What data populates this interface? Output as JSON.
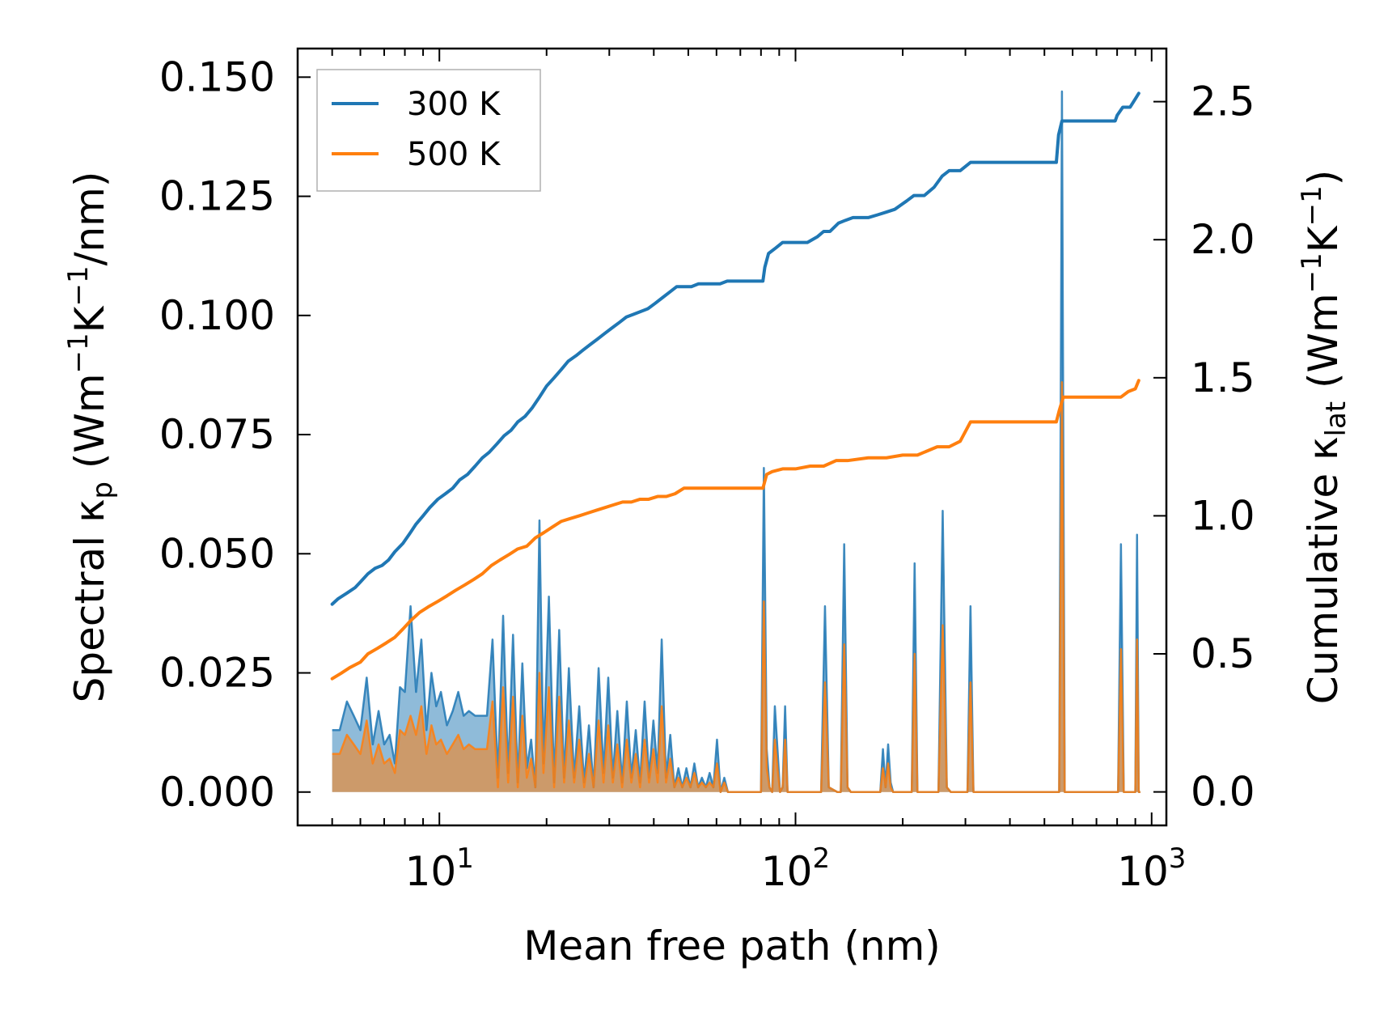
{
  "chart_data": {
    "type": "line",
    "x_scale": "log",
    "xlim": [
      4.0,
      1100.0
    ],
    "ylim_left": [
      -0.007,
      0.156
    ],
    "ylim_right": [
      -0.1213,
      2.6923
    ],
    "xlabel": "Mean free path (nm)",
    "ylabel_left": {
      "main": "Spectral κ",
      "sub": "p",
      "open": " (Wm",
      "sup1": "−1",
      "mid": "K",
      "sup2": "−1",
      "close": "/nm)"
    },
    "ylabel_right": {
      "main": "Cumulative κ",
      "sub": "lat",
      "open": " (Wm",
      "sup1": "−1",
      "mid": "K",
      "sup2": "−1",
      "close": ")"
    },
    "x_ticks": [
      {
        "value": 10,
        "base": "10",
        "exp": "1"
      },
      {
        "value": 100,
        "base": "10",
        "exp": "2"
      },
      {
        "value": 1000,
        "base": "10",
        "exp": "3"
      }
    ],
    "y_ticks_left": [
      "0.000",
      "0.025",
      "0.050",
      "0.075",
      "0.100",
      "0.125",
      "0.150"
    ],
    "y_ticks_right": [
      "0.0",
      "0.5",
      "1.0",
      "1.5",
      "2.0",
      "2.5"
    ],
    "legend": {
      "position": "top-left",
      "entries": [
        "300 K",
        "500 K"
      ]
    },
    "colors": {
      "s300": "#1f77b4",
      "s500": "#ff7f0e",
      "fill300": "#1f77b4",
      "fill500": "#ff7f0e"
    },
    "series": [
      {
        "name": "300 K",
        "axis": "right",
        "role": "cumulative",
        "x": [
          5.0,
          5.2,
          5.5,
          5.8,
          6.0,
          6.3,
          6.6,
          6.9,
          7.2,
          7.5,
          7.9,
          8.3,
          8.6,
          9.0,
          9.4,
          9.9,
          10.4,
          10.9,
          11.4,
          12.0,
          12.6,
          13.2,
          13.8,
          14.5,
          15.2,
          15.9,
          16.6,
          17.4,
          18.2,
          19.1,
          20.0,
          21.0,
          22.0,
          23.0,
          24.2,
          25.3,
          26.5,
          27.8,
          29.1,
          30.5,
          32.0,
          33.5,
          35.1,
          36.8,
          38.5,
          40.4,
          42.3,
          44.3,
          46.4,
          48.6,
          51.0,
          53.4,
          56.0,
          58.6,
          61.4,
          64.3,
          67.4,
          70.6,
          74.0,
          77.5,
          81.0,
          82.0,
          84.0,
          88.0,
          92.0,
          97.0,
          102.0,
          108.0,
          115.0,
          120.0,
          125.0,
          132.0,
          138.0,
          145.0,
          160.0,
          170.0,
          180.0,
          190.0,
          205.0,
          215.0,
          230.0,
          245.0,
          258.0,
          270.0,
          290.0,
          310.0,
          330.0,
          360.0,
          400.0,
          460.0,
          540.0,
          548.0,
          560.0,
          580.0,
          620.0,
          700.0,
          790.0,
          800.0,
          830.0,
          870.0,
          900.0,
          920.0
        ],
        "y": [
          0.68,
          0.7,
          0.72,
          0.74,
          0.76,
          0.79,
          0.81,
          0.82,
          0.84,
          0.87,
          0.9,
          0.94,
          0.97,
          1.0,
          1.03,
          1.06,
          1.08,
          1.1,
          1.13,
          1.15,
          1.18,
          1.21,
          1.23,
          1.26,
          1.29,
          1.31,
          1.34,
          1.36,
          1.39,
          1.43,
          1.47,
          1.5,
          1.53,
          1.56,
          1.58,
          1.6,
          1.62,
          1.64,
          1.66,
          1.68,
          1.7,
          1.72,
          1.73,
          1.74,
          1.75,
          1.77,
          1.79,
          1.81,
          1.83,
          1.83,
          1.83,
          1.84,
          1.84,
          1.84,
          1.84,
          1.85,
          1.85,
          1.85,
          1.85,
          1.85,
          1.85,
          1.9,
          1.95,
          1.97,
          1.99,
          1.99,
          1.99,
          1.99,
          2.01,
          2.03,
          2.03,
          2.06,
          2.07,
          2.08,
          2.08,
          2.09,
          2.1,
          2.11,
          2.14,
          2.16,
          2.16,
          2.19,
          2.23,
          2.25,
          2.25,
          2.28,
          2.28,
          2.28,
          2.28,
          2.28,
          2.28,
          2.38,
          2.43,
          2.43,
          2.43,
          2.43,
          2.43,
          2.45,
          2.48,
          2.48,
          2.51,
          2.53
        ]
      },
      {
        "name": "500 K",
        "axis": "right",
        "role": "cumulative",
        "x": [
          5.0,
          5.3,
          5.6,
          6.0,
          6.3,
          6.7,
          7.1,
          7.5,
          7.9,
          8.3,
          8.8,
          9.3,
          9.9,
          10.5,
          11.1,
          11.8,
          12.5,
          13.2,
          14.0,
          14.8,
          15.7,
          16.6,
          17.6,
          18.6,
          19.7,
          20.8,
          22.0,
          23.3,
          24.7,
          26.1,
          27.6,
          29.2,
          30.9,
          32.7,
          34.6,
          36.6,
          38.7,
          41.0,
          43.4,
          45.9,
          48.6,
          51.4,
          54.4,
          57.6,
          61.0,
          64.6,
          68.4,
          72.4,
          76.7,
          81.0,
          83.0,
          86.0,
          92.0,
          100.0,
          110.0,
          120.0,
          130.0,
          140.0,
          160.0,
          180.0,
          200.0,
          220.0,
          250.0,
          270.0,
          290.0,
          310.0,
          340.0,
          380.0,
          420.0,
          480.0,
          540.0,
          550.0,
          565.0,
          600.0,
          700.0,
          800.0,
          820.0,
          860.0,
          900.0,
          920.0
        ],
        "y": [
          0.41,
          0.43,
          0.45,
          0.47,
          0.5,
          0.52,
          0.54,
          0.56,
          0.59,
          0.62,
          0.65,
          0.67,
          0.69,
          0.71,
          0.73,
          0.75,
          0.77,
          0.79,
          0.82,
          0.84,
          0.86,
          0.88,
          0.89,
          0.92,
          0.94,
          0.96,
          0.98,
          0.99,
          1.0,
          1.01,
          1.02,
          1.03,
          1.04,
          1.05,
          1.05,
          1.06,
          1.06,
          1.07,
          1.07,
          1.08,
          1.1,
          1.1,
          1.1,
          1.1,
          1.1,
          1.1,
          1.1,
          1.1,
          1.1,
          1.1,
          1.15,
          1.16,
          1.17,
          1.17,
          1.18,
          1.18,
          1.2,
          1.2,
          1.21,
          1.21,
          1.22,
          1.22,
          1.25,
          1.25,
          1.27,
          1.34,
          1.34,
          1.34,
          1.34,
          1.34,
          1.34,
          1.38,
          1.43,
          1.43,
          1.43,
          1.43,
          1.43,
          1.45,
          1.46,
          1.49
        ]
      },
      {
        "name": "300 K",
        "axis": "left",
        "role": "spectral",
        "x": [
          5.0,
          5.25,
          5.5,
          5.75,
          6.0,
          6.25,
          6.5,
          6.75,
          7.0,
          7.25,
          7.5,
          7.75,
          8.0,
          8.3,
          8.6,
          8.9,
          9.2,
          9.5,
          9.8,
          10.1,
          10.5,
          10.9,
          11.3,
          11.7,
          12.1,
          12.6,
          13.1,
          13.6,
          14.1,
          14.6,
          15.1,
          15.6,
          16.1,
          16.6,
          17.1,
          17.6,
          18.1,
          18.6,
          19.1,
          19.6,
          20.3,
          21.0,
          21.7,
          22.4,
          23.1,
          23.9,
          24.7,
          25.5,
          26.3,
          27.1,
          28.0,
          28.9,
          29.8,
          30.7,
          31.6,
          32.6,
          33.6,
          34.6,
          35.6,
          36.6,
          37.7,
          38.8,
          39.9,
          41.0,
          42.1,
          43.3,
          44.5,
          45.7,
          46.9,
          48.1,
          49.4,
          50.7,
          52.0,
          53.3,
          54.6,
          56.0,
          57.4,
          58.8,
          60.2,
          61.6,
          63.1,
          64.6,
          66.1,
          67.6,
          69.2,
          70.0,
          80.0,
          81.5,
          83.0,
          84.5,
          86.0,
          87.5,
          89.0,
          90.5,
          92.0,
          93.5,
          95.0,
          96.5,
          98.0,
          115.0,
          118.0,
          121.0,
          124.0,
          131.0,
          134.0,
          137.0,
          140.0,
          143.0,
          170.0,
          173.0,
          176.0,
          179.0,
          182.0,
          185.0,
          188.0,
          191.0,
          194.0,
          208.0,
          212.0,
          216.0,
          220.0,
          245.0,
          252.0,
          259.0,
          266.0,
          273.0,
          280.0,
          298.0,
          304.0,
          310.0,
          316.0,
          322.0,
          540.0,
          550.0,
          560.0,
          570.0,
          580.0,
          790.0,
          805.0,
          820.0,
          835.0,
          850.0,
          890.0,
          900.0,
          910.0,
          920.0,
          930.0
        ],
        "y": [
          0.013,
          0.013,
          0.019,
          0.016,
          0.013,
          0.024,
          0.01,
          0.017,
          0.01,
          0.012,
          0.006,
          0.022,
          0.021,
          0.039,
          0.021,
          0.032,
          0.013,
          0.025,
          0.018,
          0.021,
          0.014,
          0.017,
          0.021,
          0.016,
          0.017,
          0.016,
          0.016,
          0.016,
          0.032,
          0.003,
          0.037,
          0.004,
          0.033,
          0.002,
          0.027,
          0.005,
          0.011,
          0.001,
          0.057,
          0.006,
          0.041,
          0.002,
          0.034,
          0.003,
          0.026,
          0.003,
          0.018,
          0.002,
          0.014,
          0.001,
          0.026,
          0.004,
          0.024,
          0.003,
          0.017,
          0.002,
          0.019,
          0.003,
          0.013,
          0.002,
          0.019,
          0.003,
          0.015,
          0.004,
          0.032,
          0.003,
          0.012,
          0.001,
          0.005,
          0.001,
          0.005,
          0.001,
          0.006,
          0.001,
          0.003,
          0.001,
          0.004,
          0.001,
          0.011,
          0.0,
          0.003,
          0.0,
          0.0,
          0.0,
          0.0,
          0.0,
          0.0,
          0.068,
          0.009,
          0.001,
          0.0,
          0.018,
          0.009,
          0.0,
          0.001,
          0.018,
          0.0,
          0.0,
          0.0,
          0.0,
          0.0,
          0.039,
          0.001,
          0.0,
          0.0,
          0.052,
          0.001,
          0.0,
          0.0,
          0.0,
          0.009,
          0.001,
          0.01,
          0.002,
          0.0,
          0.0,
          0.0,
          0.0,
          0.0,
          0.048,
          0.0,
          0.0,
          0.0,
          0.059,
          0.001,
          0.0,
          0.0,
          0.0,
          0.0,
          0.039,
          0.0,
          0.0,
          0.0,
          0.0,
          0.147,
          0.0,
          0.0,
          0.0,
          0.0,
          0.052,
          0.0,
          0.0,
          0.0,
          0.0,
          0.054,
          0.0,
          0.0
        ]
      },
      {
        "name": "500 K",
        "axis": "left",
        "role": "spectral",
        "x": [
          5.0,
          5.25,
          5.5,
          5.75,
          6.0,
          6.25,
          6.5,
          6.75,
          7.0,
          7.25,
          7.5,
          7.75,
          8.0,
          8.3,
          8.6,
          8.9,
          9.2,
          9.5,
          9.8,
          10.1,
          10.5,
          10.9,
          11.3,
          11.7,
          12.1,
          12.6,
          13.1,
          13.6,
          14.1,
          14.6,
          15.1,
          15.6,
          16.1,
          16.6,
          17.1,
          17.6,
          18.1,
          18.6,
          19.1,
          19.6,
          20.3,
          21.0,
          21.7,
          22.4,
          23.1,
          23.9,
          24.7,
          25.5,
          26.3,
          27.1,
          28.0,
          28.9,
          29.8,
          30.7,
          31.6,
          32.6,
          33.6,
          34.6,
          35.6,
          36.6,
          37.7,
          38.8,
          39.9,
          41.0,
          42.1,
          43.3,
          44.5,
          45.7,
          46.9,
          48.1,
          49.4,
          50.7,
          52.0,
          53.3,
          54.6,
          56.0,
          57.4,
          58.8,
          60.2,
          61.6,
          63.1,
          64.6,
          66.1,
          67.6,
          69.2,
          70.0,
          80.0,
          81.5,
          83.0,
          84.5,
          86.0,
          87.5,
          89.0,
          90.5,
          92.0,
          93.5,
          95.0,
          96.5,
          98.0,
          115.0,
          118.0,
          121.0,
          124.0,
          131.0,
          134.0,
          137.0,
          140.0,
          143.0,
          170.0,
          173.0,
          176.0,
          179.0,
          182.0,
          185.0,
          188.0,
          191.0,
          194.0,
          208.0,
          212.0,
          216.0,
          220.0,
          245.0,
          252.0,
          259.0,
          266.0,
          273.0,
          280.0,
          298.0,
          304.0,
          310.0,
          316.0,
          322.0,
          540.0,
          550.0,
          560.0,
          570.0,
          580.0,
          790.0,
          805.0,
          820.0,
          835.0,
          850.0,
          890.0,
          900.0,
          910.0,
          920.0,
          930.0
        ],
        "y": [
          0.008,
          0.008,
          0.012,
          0.01,
          0.008,
          0.015,
          0.006,
          0.01,
          0.006,
          0.007,
          0.004,
          0.013,
          0.012,
          0.016,
          0.012,
          0.018,
          0.008,
          0.014,
          0.01,
          0.011,
          0.008,
          0.01,
          0.012,
          0.009,
          0.01,
          0.009,
          0.009,
          0.009,
          0.019,
          0.001,
          0.022,
          0.002,
          0.02,
          0.001,
          0.016,
          0.003,
          0.007,
          0.001,
          0.025,
          0.004,
          0.022,
          0.001,
          0.02,
          0.002,
          0.015,
          0.002,
          0.011,
          0.001,
          0.008,
          0.001,
          0.015,
          0.002,
          0.014,
          0.002,
          0.01,
          0.001,
          0.011,
          0.002,
          0.008,
          0.001,
          0.011,
          0.002,
          0.009,
          0.002,
          0.018,
          0.002,
          0.007,
          0.001,
          0.003,
          0.001,
          0.003,
          0.001,
          0.004,
          0.001,
          0.002,
          0.001,
          0.002,
          0.001,
          0.006,
          0.0,
          0.002,
          0.0,
          0.0,
          0.0,
          0.0,
          0.0,
          0.0,
          0.04,
          0.005,
          0.001,
          0.0,
          0.011,
          0.005,
          0.0,
          0.001,
          0.011,
          0.0,
          0.0,
          0.0,
          0.0,
          0.0,
          0.023,
          0.001,
          0.0,
          0.0,
          0.031,
          0.001,
          0.0,
          0.0,
          0.0,
          0.005,
          0.001,
          0.006,
          0.001,
          0.0,
          0.0,
          0.0,
          0.0,
          0.0,
          0.029,
          0.0,
          0.0,
          0.0,
          0.035,
          0.001,
          0.0,
          0.0,
          0.0,
          0.0,
          0.023,
          0.0,
          0.0,
          0.0,
          0.0,
          0.086,
          0.0,
          0.0,
          0.0,
          0.0,
          0.03,
          0.0,
          0.0,
          0.0,
          0.0,
          0.032,
          0.0,
          0.0
        ]
      }
    ]
  }
}
